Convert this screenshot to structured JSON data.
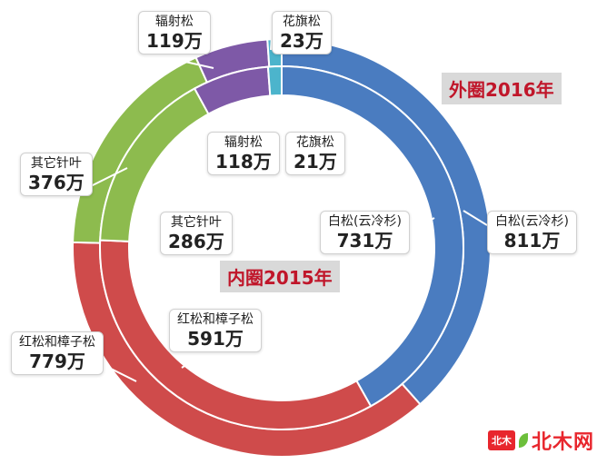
{
  "chart_data": {
    "type": "donut",
    "rings": [
      {
        "name": "外圈2016年",
        "slices": [
          {
            "label": "白松(云冷杉)",
            "value": 811,
            "unit": "万",
            "color": "#4a7cc0"
          },
          {
            "label": "红松和樟子松",
            "value": 779,
            "unit": "万",
            "color": "#cf4b4b"
          },
          {
            "label": "其它针叶",
            "value": 376,
            "unit": "万",
            "color": "#8dbb4e"
          },
          {
            "label": "辐射松",
            "value": 119,
            "unit": "万",
            "color": "#7e59a7"
          },
          {
            "label": "花旗松",
            "value": 23,
            "unit": "万",
            "color": "#4cb4cc"
          }
        ]
      },
      {
        "name": "内圈2015年",
        "slices": [
          {
            "label": "白松(云冷杉)",
            "value": 731,
            "unit": "万",
            "color": "#4a7cc0"
          },
          {
            "label": "红松和樟子松",
            "value": 591,
            "unit": "万",
            "color": "#cf4b4b"
          },
          {
            "label": "其它针叶",
            "value": 286,
            "unit": "万",
            "color": "#8dbb4e"
          },
          {
            "label": "辐射松",
            "value": 118,
            "unit": "万",
            "color": "#7e59a7"
          },
          {
            "label": "花旗松",
            "value": 21,
            "unit": "万",
            "color": "#4cb4cc"
          }
        ]
      }
    ]
  },
  "labels": {
    "outer": {
      "baisong_name": "白松(云冷杉)",
      "baisong_val": "811万",
      "hongsong_name": "红松和樟子松",
      "hongsong_val": "779万",
      "qita_name": "其它针叶",
      "qita_val": "376万",
      "fushe_name": "辐射松",
      "fushe_val": "119万",
      "huaqi_name": "花旗松",
      "huaqi_val": "23万"
    },
    "inner": {
      "baisong_name": "白松(云冷杉)",
      "baisong_val": "731万",
      "hongsong_name": "红松和樟子松",
      "hongsong_val": "591万",
      "qita_name": "其它针叶",
      "qita_val": "286万",
      "fushe_name": "辐射松",
      "fushe_val": "118万",
      "huaqi_name": "花旗松",
      "huaqi_val": "21万"
    },
    "outer_ring_tag": "外圈2016年",
    "inner_ring_tag": "内圈2015年"
  },
  "watermark": {
    "badge": "北木",
    "text": "北木网"
  }
}
